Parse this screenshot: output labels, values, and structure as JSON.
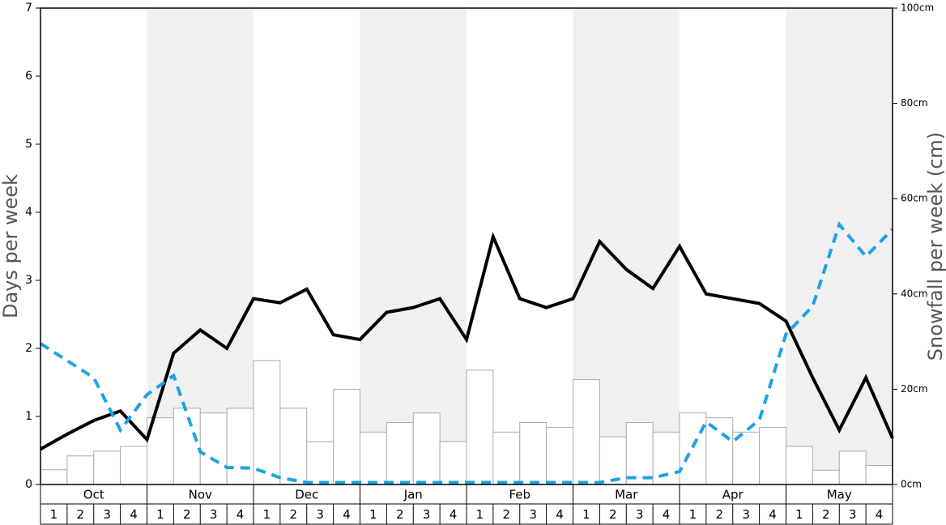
{
  "chart_data": {
    "type": "bar-line",
    "y_label": "Days per week",
    "y2_label": "Snowfall per week (cm)",
    "months": [
      "Oct",
      "Nov",
      "Dec",
      "Jan",
      "Feb",
      "Mar",
      "Apr",
      "May"
    ],
    "weeks": [
      "1",
      "2",
      "3",
      "4"
    ],
    "ylim": [
      0,
      7
    ],
    "yticks": [
      0,
      1,
      2,
      3,
      4,
      5,
      6,
      7
    ],
    "y2lim": [
      0,
      100
    ],
    "y2ticks": [
      {
        "value": 0,
        "label": "0cm"
      },
      {
        "value": 20,
        "label": "20cm"
      },
      {
        "value": 40,
        "label": "40cm"
      },
      {
        "value": 60,
        "label": "60cm"
      },
      {
        "value": 80,
        "label": "80cm"
      },
      {
        "value": 100,
        "label": "100cm"
      }
    ],
    "series": [
      {
        "type": "bar",
        "axis": "y2",
        "color": "#ffffff",
        "values": [
          3.1,
          6,
          7,
          8,
          14,
          16,
          15,
          16,
          26,
          16,
          9,
          20,
          11,
          13,
          15,
          9,
          24,
          11,
          13,
          12,
          22,
          10,
          13,
          11,
          15,
          14,
          11,
          12,
          8,
          3,
          7,
          4
        ]
      },
      {
        "type": "line",
        "color": "#000000",
        "dash": false,
        "values": [
          0.52,
          0.74,
          0.94,
          1.08,
          0.66,
          1.93,
          2.27,
          2.0,
          2.73,
          2.67,
          2.87,
          2.2,
          2.13,
          2.53,
          2.6,
          2.73,
          2.13,
          3.64,
          2.73,
          2.6,
          2.73,
          3.57,
          3.16,
          2.88,
          3.5,
          2.8,
          2.73,
          2.66,
          2.4,
          1.57,
          0.8,
          1.57,
          0.68
        ]
      },
      {
        "type": "line",
        "color": "#1ca3e6",
        "dash": true,
        "values": [
          2.07,
          1.82,
          1.57,
          0.8,
          1.32,
          1.6,
          0.48,
          0.25,
          0.24,
          0.1,
          0.03,
          0.03,
          0.03,
          0.03,
          0.03,
          0.03,
          0.03,
          0.03,
          0.03,
          0.03,
          0.03,
          0.03,
          0.1,
          0.1,
          0.19,
          0.92,
          0.63,
          0.95,
          2.21,
          2.62,
          3.82,
          3.35,
          3.75
        ]
      }
    ]
  }
}
